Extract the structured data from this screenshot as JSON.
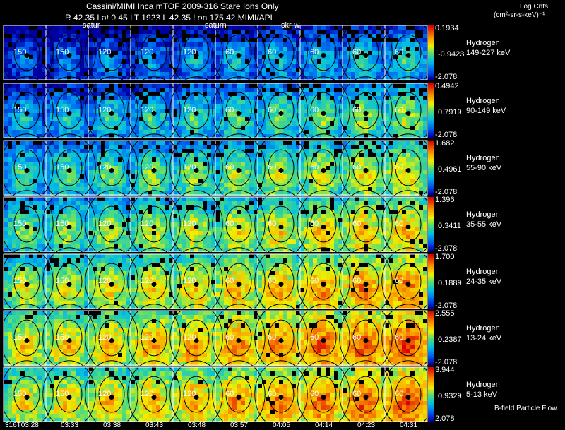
{
  "header": {
    "title": "Cassini/MIMI Inca mTOF  2009-316   Stare    Ions Only",
    "subtitle": "R     42.35 Lat 0.45 LT 1923 L       42.35 Lon        175.42  MIMI/APL",
    "units_label": "Log Cnts",
    "units_value": "(cm²-sr-s-keV)⁻¹"
  },
  "colors": {
    "high": "#e00000",
    "mid_high": "#f0a000",
    "mid": "#f0f000",
    "mid_low": "#30d0a0",
    "low": "#00a0f0",
    "lowest": "#0000a0",
    "background": "#000000"
  },
  "panel_labels": [
    "satur",
    "saturn",
    "skr-w"
  ],
  "footer_label": "B-field Particle Flow",
  "time_ticks": [
    "316T03:28",
    "03:33",
    "03:38",
    "03:43",
    "03:48",
    "03:57",
    "04:05",
    "04:14",
    "04:23",
    "04:31"
  ],
  "contour_labels": [
    "30",
    "60",
    "90",
    "120",
    "150",
    "180"
  ],
  "chart_data": {
    "type": "heatmap",
    "title": "Cassini/MIMI Inca mTOF  2009-316   Stare    Ions Only",
    "colorbar_label": "Log Cnts",
    "x": [
      "316T03:28",
      "03:33",
      "03:38",
      "03:43",
      "03:48",
      "03:57",
      "04:05",
      "04:14",
      "04:23",
      "04:31"
    ],
    "rows": [
      {
        "species": "Hydrogen",
        "energy": "149-227 keV",
        "cmax": "0.1934",
        "cmid": "-0.9423",
        "cmin": "-2.078",
        "level": 0.25
      },
      {
        "species": "Hydrogen",
        "energy": "90-149 keV",
        "cmax": "0.4942",
        "cmid": "0.7919",
        "cmin": "-2.078",
        "level": 0.4
      },
      {
        "species": "Hydrogen",
        "energy": "55-90 keV",
        "cmax": "1.682",
        "cmid": "0.4961",
        "cmin": "-2.078",
        "level": 0.5
      },
      {
        "species": "Hydrogen",
        "energy": "35-55 keV",
        "cmax": "1.396",
        "cmid": "0.3411",
        "cmin": "-2.078",
        "level": 0.58
      },
      {
        "species": "Hydrogen",
        "energy": "24-35 keV",
        "cmax": "1.700",
        "cmid": "0.1889",
        "cmin": "-2.078",
        "level": 0.66
      },
      {
        "species": "Hydrogen",
        "energy": "13-24 keV",
        "cmax": "2.555",
        "cmid": "0.2387",
        "cmin": "-2.078",
        "level": 0.74
      },
      {
        "species": "Hydrogen",
        "energy": "5-13 keV",
        "cmax": "3.944",
        "cmid": "0.9329",
        "cmin": "2.078",
        "level": 0.72
      }
    ]
  }
}
